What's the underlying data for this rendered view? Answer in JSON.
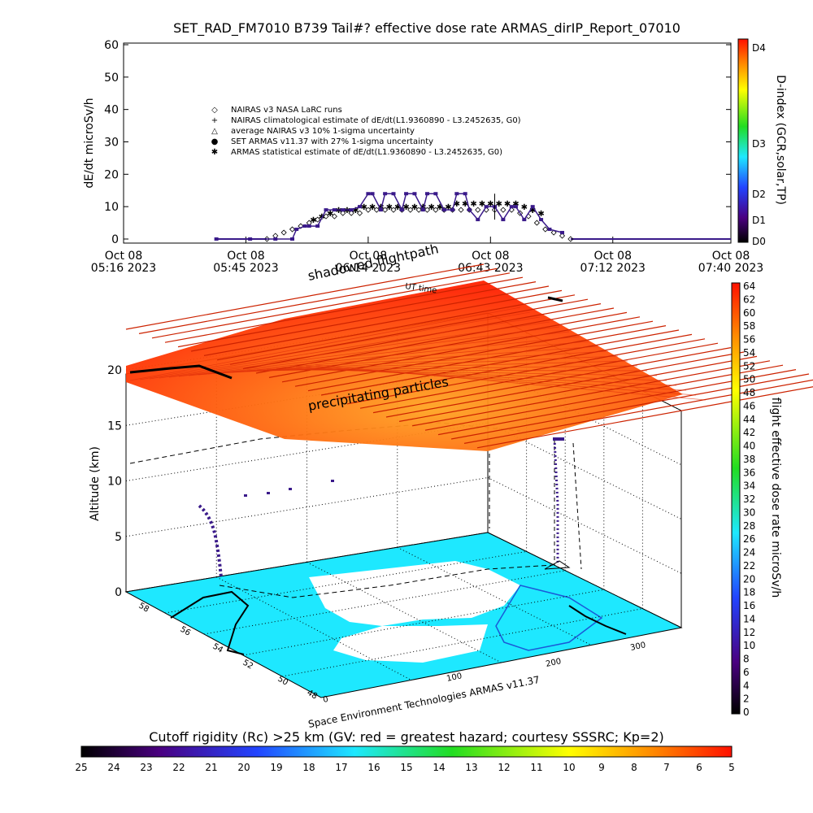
{
  "chart_data": [
    {
      "type": "scatter",
      "title": "SET_RAD_FM7010  B739 Tail#? effective dose rate ARMAS_dirIP_Report_07010",
      "ylabel": "dE/dt microSv/h",
      "ylim": [
        0,
        60
      ],
      "yticks": [
        "0",
        "10",
        "20",
        "30",
        "40",
        "50",
        "60"
      ],
      "xlim": [
        0,
        144
      ],
      "xticks": [
        {
          "x": 0,
          "line1": "Oct 08",
          "line2": "05:16 2023"
        },
        {
          "x": 29,
          "line1": "Oct 08",
          "line2": "05:45 2023"
        },
        {
          "x": 58,
          "line1": "Oct 08",
          "line2": "06:14 2023"
        },
        {
          "x": 87,
          "line1": "Oct 08",
          "line2": "06:43 2023"
        },
        {
          "x": 116,
          "line1": "Oct 08",
          "line2": "07:12 2023"
        },
        {
          "x": 144,
          "line1": "Oct 08",
          "line2": "07:40 2023"
        }
      ],
      "legend": {
        "placement": "upper-left",
        "entries": [
          {
            "symbol": "◇",
            "color": "#000000",
            "label": "NAIRAS v3 NASA LaRC runs"
          },
          {
            "symbol": "+",
            "color": "#000000",
            "label": "NAIRAS climatological estimate of dE/dt(L1.9360890 - L3.2452635, G0)"
          },
          {
            "symbol": "△",
            "color": "#000000",
            "label": "average NAIRAS v3 10% 1-sigma uncertainty"
          },
          {
            "symbol": "●",
            "color": "#1a1adc",
            "label": "SET ARMAS v11.37 with 27% 1-sigma uncertainty"
          },
          {
            "symbol": "✱",
            "color": "#000000",
            "label": "ARMAS statistical estimate of dE/dt(L1.9360890 - L3.2452635, G0)"
          }
        ]
      },
      "series": [
        {
          "name": "SET ARMAS v11.37 with 27% 1-sigma uncertainty",
          "color": "#3a1a8a",
          "x": [
            22,
            30,
            36,
            40,
            41,
            43,
            44,
            46,
            48,
            50,
            52,
            54,
            56,
            58,
            59,
            61,
            62,
            64,
            66,
            67,
            69,
            71,
            72,
            74,
            76,
            78,
            79,
            81,
            82,
            84,
            86,
            88,
            90,
            92,
            93,
            95,
            97,
            99,
            101,
            104
          ],
          "y": [
            0,
            0,
            0,
            0,
            3,
            4,
            4,
            4,
            9,
            9,
            9,
            9,
            10,
            14,
            14,
            9,
            14,
            14,
            9,
            14,
            14,
            9,
            14,
            14,
            9,
            9,
            14,
            14,
            9,
            6,
            10,
            10,
            6,
            10,
            10,
            6,
            10,
            6,
            3,
            2
          ]
        },
        {
          "name": "ARMAS statistical estimate of dE/dt(L1.9360890 - L3.2452635, G0)",
          "color": "#000000",
          "x": [
            45,
            47,
            49,
            51,
            53,
            55,
            57,
            59,
            61,
            63,
            65,
            67,
            69,
            71,
            73,
            75,
            77,
            79,
            81,
            83,
            85,
            87,
            89,
            91,
            93,
            95,
            97,
            99
          ],
          "y": [
            6,
            7,
            8,
            9,
            9,
            9,
            10,
            10,
            10,
            10,
            10,
            10,
            10,
            10,
            10,
            10,
            10,
            11,
            11,
            11,
            11,
            11,
            11,
            11,
            11,
            10,
            9,
            8
          ]
        },
        {
          "name": "NAIRAS v3 NASA LaRC runs",
          "color": "#000000",
          "x": [
            34,
            36,
            38,
            40,
            42,
            44,
            46,
            48,
            50,
            52,
            54,
            56,
            58,
            60,
            62,
            64,
            66,
            68,
            70,
            72,
            74,
            76,
            78,
            80,
            82,
            84,
            86,
            88,
            90,
            92,
            94,
            96,
            98,
            100,
            102,
            104,
            106
          ],
          "y": [
            0,
            1,
            2,
            3,
            4,
            5,
            6,
            7,
            7,
            8,
            8,
            8,
            9,
            9,
            9,
            9,
            9,
            9,
            9,
            9,
            9,
            9,
            9,
            9,
            9,
            9,
            9,
            9,
            9,
            9,
            8,
            7,
            5,
            3,
            2,
            1,
            0
          ]
        }
      ],
      "right_colorbar": {
        "label": "D-index (GCR,solar,TP)",
        "ticks": [
          "D0",
          "D1",
          "D2",
          "D3",
          "D4"
        ]
      }
    },
    {
      "type": "surface3d",
      "annotations": [
        "shadowed flightpath",
        "UT time",
        "precipitating particles"
      ],
      "zlabel": "Altitude (km)",
      "zticks": [
        "0",
        "5",
        "10",
        "15",
        "20"
      ],
      "lat_ticks": [
        "48",
        "50",
        "52",
        "54",
        "56",
        "58"
      ],
      "lon_ticks": [
        "0",
        "100",
        "200",
        "300"
      ],
      "credit": "Space Environment Technologies ARMAS v11.37",
      "dose_colorbar": {
        "label": "flight effective dose rate microSv/h",
        "ticks": [
          "0",
          "2",
          "4",
          "6",
          "8",
          "10",
          "12",
          "14",
          "16",
          "18",
          "20",
          "22",
          "24",
          "26",
          "28",
          "30",
          "32",
          "34",
          "36",
          "38",
          "40",
          "42",
          "44",
          "46",
          "48",
          "50",
          "52",
          "54",
          "56",
          "58",
          "60",
          "62",
          "64"
        ]
      }
    }
  ],
  "rigidity_bar": {
    "title": "Cutoff rigidity (Rc) >25 km (GV: red = greatest hazard; courtesy SSSRC; Kp=2)",
    "ticks": [
      "25",
      "24",
      "23",
      "22",
      "21",
      "20",
      "19",
      "18",
      "17",
      "16",
      "15",
      "14",
      "13",
      "12",
      "11",
      "10",
      "9",
      "8",
      "7",
      "6",
      "5"
    ]
  },
  "colors": {
    "ocean": "#1ee8ff",
    "land": "#ffffff",
    "panel_hot": "#ff2a00",
    "panel_warm": "#ff9a1a",
    "panel_lines": "#cc2200"
  }
}
